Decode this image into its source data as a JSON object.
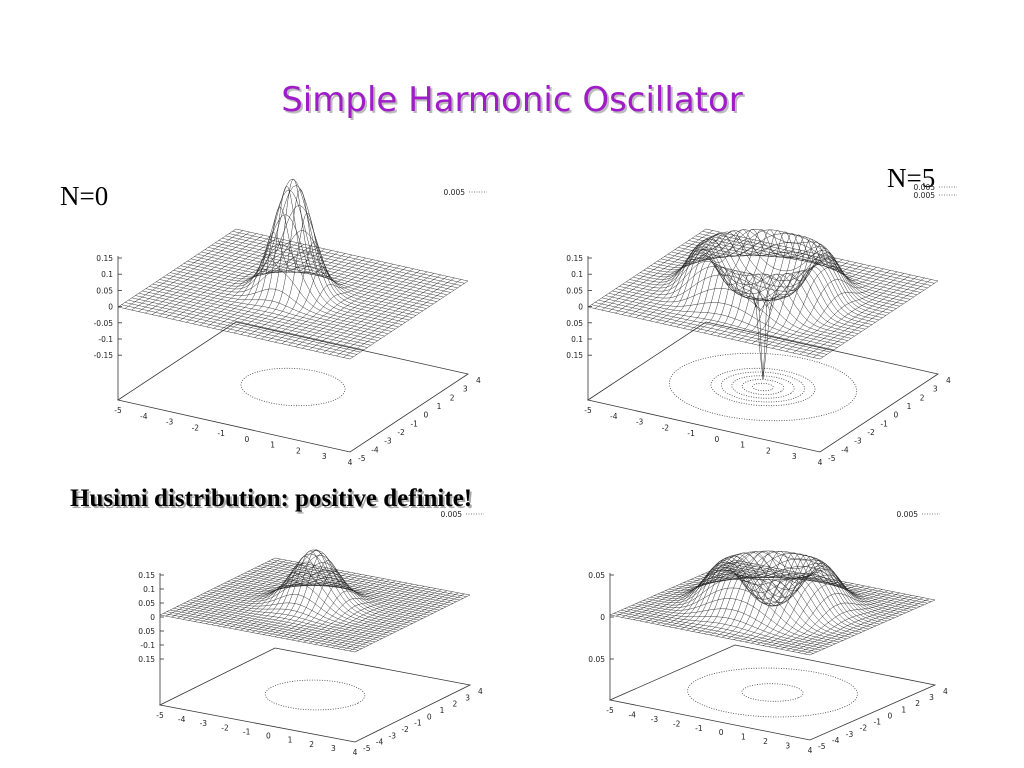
{
  "title": "Simple Harmonic Oscillator",
  "labels": {
    "left": "N=0",
    "right": "N=5"
  },
  "subtitle": "Husimi distribution: positive definite!",
  "plots": [
    {
      "legend": [
        "0.005"
      ],
      "zticks": [
        "0.15",
        "0.1",
        "0.05",
        "0",
        "-0.05",
        "-0.1",
        "-0.15"
      ],
      "xticks": [
        "-5",
        "-4",
        "-3",
        "-2",
        "-1",
        "0",
        "1",
        "2",
        "3",
        "4"
      ],
      "yticks": [
        "-5",
        "-4",
        "-3",
        "-2",
        "-1",
        "0",
        "1",
        "2",
        "3",
        "4"
      ]
    },
    {
      "legend": [
        "0.005",
        "0.005"
      ],
      "zticks": [
        "0.15",
        "0.1",
        "0.05",
        "0",
        "0.05",
        "0.1",
        "0.15"
      ],
      "xticks": [
        "-5",
        "-4",
        "-3",
        "-2",
        "-1",
        "0",
        "1",
        "2",
        "3",
        "4"
      ],
      "yticks": [
        "-5",
        "-4",
        "-3",
        "-2",
        "-1",
        "0",
        "1",
        "2",
        "3",
        "4"
      ]
    },
    {
      "legend": [
        "0.005"
      ],
      "zticks": [
        "0.15",
        "0.1",
        "0.05",
        "0",
        "0.05",
        "-0.1",
        "0.15"
      ],
      "xticks": [
        "-5",
        "-4",
        "-3",
        "-2",
        "-1",
        "0",
        "1",
        "2",
        "3",
        "4"
      ],
      "yticks": [
        "-5",
        "-4",
        "-3",
        "-2",
        "-1",
        "0",
        "1",
        "2",
        "3",
        "4"
      ]
    },
    {
      "legend": [
        "0.005"
      ],
      "zticks": [
        "0.05",
        "0",
        "0.05"
      ],
      "xticks": [
        "-5",
        "-4",
        "-3",
        "-2",
        "-1",
        "0",
        "1",
        "2",
        "3",
        "4"
      ],
      "yticks": [
        "-5",
        "-4",
        "-3",
        "-2",
        "-1",
        "0",
        "1",
        "2",
        "3",
        "4"
      ]
    }
  ]
}
